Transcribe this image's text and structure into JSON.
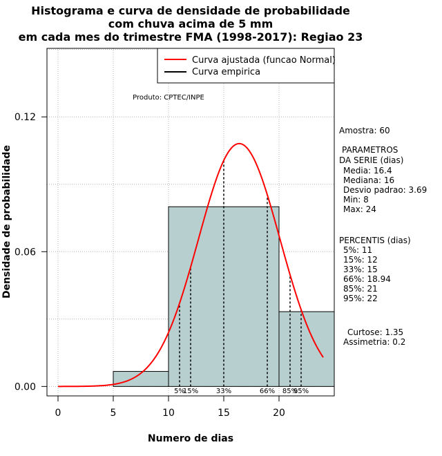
{
  "chart_data": {
    "type": "bar",
    "title_lines": [
      "Histograma e curva de densidade de probabilidade",
      "com chuva acima de 5 mm",
      "em cada mes do trimestre FMA (1998-2017): Regiao 23"
    ],
    "xlabel": "Numero de dias",
    "ylabel": "Densidade de probabilidade",
    "xlim": [
      -1,
      25
    ],
    "ylim": [
      -0.0042,
      0.1505
    ],
    "x_ticks": [
      0,
      5,
      10,
      15,
      20
    ],
    "x_tick_labels": [
      "0",
      "5",
      "10",
      "15",
      "20"
    ],
    "y_ticks": [
      0.0,
      0.06,
      0.12
    ],
    "y_tick_labels": [
      "0.00",
      "0.06",
      "0.12"
    ],
    "grid_x": [
      0,
      5,
      10,
      15,
      20
    ],
    "grid_y": [
      0.0,
      0.03,
      0.06,
      0.09,
      0.12,
      0.15
    ],
    "histogram": {
      "bin_edges": [
        5,
        10,
        20,
        25
      ],
      "densities": [
        0.0067,
        0.08,
        0.0333
      ],
      "color": "#b8cfcf"
    },
    "fitted_curve": {
      "name": "Curva ajustada (funcao Normal)",
      "distribution": "normal",
      "mean": 16.4,
      "sd": 3.69,
      "x_range": [
        0,
        24
      ],
      "color": "#ff0000"
    },
    "empirical_curve": {
      "name": "Curva empirica",
      "color": "#000000"
    },
    "percentile_marks": [
      {
        "label": "5%",
        "x": 11
      },
      {
        "label": "15%",
        "x": 12
      },
      {
        "label": "33%",
        "x": 15
      },
      {
        "label": "66%",
        "x": 18.94
      },
      {
        "label": "85%",
        "x": 21
      },
      {
        "label": "95%",
        "x": 22
      }
    ],
    "legend_position": "top-right",
    "annotation": "Produto: CPTEC/INPE"
  },
  "stats_panel": {
    "amostra": "Amostra: 60",
    "params_title_1": "PARAMETROS",
    "params_title_2": "DA SERIE (dias)",
    "media": "Media: 16.4",
    "mediana": "Mediana: 16",
    "desvio": "Desvio padrao: 3.69",
    "min": "Min: 8",
    "max": "Max: 24",
    "percentis_title": "PERCENTIS (dias)",
    "p5": "5%: 11",
    "p15": "15%: 12",
    "p33": "33%: 15",
    "p66": "66%: 18.94",
    "p85": "85%: 21",
    "p95": "95%: 22",
    "curtose": "Curtose: 1.35",
    "assimetria": "Assimetria: 0.2"
  }
}
